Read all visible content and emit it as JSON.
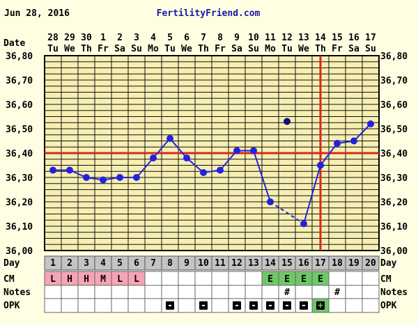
{
  "header": {
    "date": "Jun 28, 2016",
    "site": "FertilityFriend.com"
  },
  "row_labels": {
    "date": "Date",
    "day": "Day",
    "cm": "CM",
    "notes": "Notes",
    "opk": "OPK"
  },
  "colors": {
    "background": "#fffde2",
    "plot_background": "#f6eeb2",
    "grid": "#111111",
    "line": "#2222dd",
    "coverline": "#d42a20",
    "ovulation": "#d42a20",
    "menses_cell": "#f5a4b6",
    "fertile_cell": "#6ec86a",
    "day_row": "#c4c4c4",
    "site_text": "#1a1aa8"
  },
  "chart_data": {
    "type": "line",
    "ylim": [
      36.0,
      36.8
    ],
    "ylabel_ticks": [
      "36,00",
      "36,10",
      "36,20",
      "36,30",
      "36,40",
      "36,50",
      "36,60",
      "36,70",
      "36,80"
    ],
    "dates": [
      "28",
      "29",
      "30",
      "1",
      "2",
      "3",
      "4",
      "5",
      "6",
      "7",
      "8",
      "9",
      "10",
      "11",
      "12",
      "13",
      "14",
      "15",
      "16",
      "17"
    ],
    "weekdays": [
      "Tu",
      "We",
      "Th",
      "Fr",
      "Sa",
      "Su",
      "Mo",
      "Tu",
      "We",
      "Th",
      "Fr",
      "Sa",
      "Su",
      "Mo",
      "Tu",
      "We",
      "Th",
      "Fr",
      "Sa",
      "Su"
    ],
    "cycle_days": [
      "1",
      "2",
      "3",
      "4",
      "5",
      "6",
      "7",
      "8",
      "9",
      "10",
      "11",
      "12",
      "13",
      "14",
      "15",
      "16",
      "17",
      "18",
      "19",
      "20"
    ],
    "temperatures": [
      36.33,
      36.33,
      36.3,
      36.29,
      36.3,
      36.3,
      36.38,
      36.46,
      36.38,
      36.32,
      36.33,
      36.41,
      36.41,
      36.2,
      null,
      36.11,
      36.35,
      36.44,
      36.45,
      36.52
    ],
    "discarded": [
      {
        "day": 15,
        "temp": 36.53
      }
    ],
    "dashed_gap": {
      "from_day": 14,
      "to_day": 16
    },
    "coverline": 36.4,
    "ovulation_day": 17,
    "cm": [
      "L",
      "H",
      "H",
      "M",
      "L",
      "L",
      "",
      "",
      "",
      "",
      "",
      "",
      "",
      "E",
      "E",
      "E",
      "E",
      "",
      "",
      ""
    ],
    "cm_type": [
      "menses",
      "menses",
      "menses",
      "menses",
      "menses",
      "menses",
      "",
      "",
      "",
      "",
      "",
      "",
      "",
      "fertile",
      "fertile",
      "fertile",
      "fertile",
      "",
      "",
      ""
    ],
    "notes": [
      "",
      "",
      "",
      "",
      "",
      "",
      "",
      "",
      "",
      "",
      "",
      "",
      "",
      "",
      "#",
      "",
      "",
      "#",
      "",
      ""
    ],
    "opk": [
      "",
      "",
      "",
      "",
      "",
      "",
      "",
      "-",
      "",
      "-",
      "",
      "-",
      "-",
      "-",
      "-",
      "-",
      "+",
      "",
      "",
      ""
    ],
    "opk_type": [
      "",
      "",
      "",
      "",
      "",
      "",
      "",
      "neg",
      "",
      "neg",
      "",
      "neg",
      "neg",
      "neg",
      "neg",
      "neg",
      "pos",
      "",
      "",
      ""
    ]
  }
}
